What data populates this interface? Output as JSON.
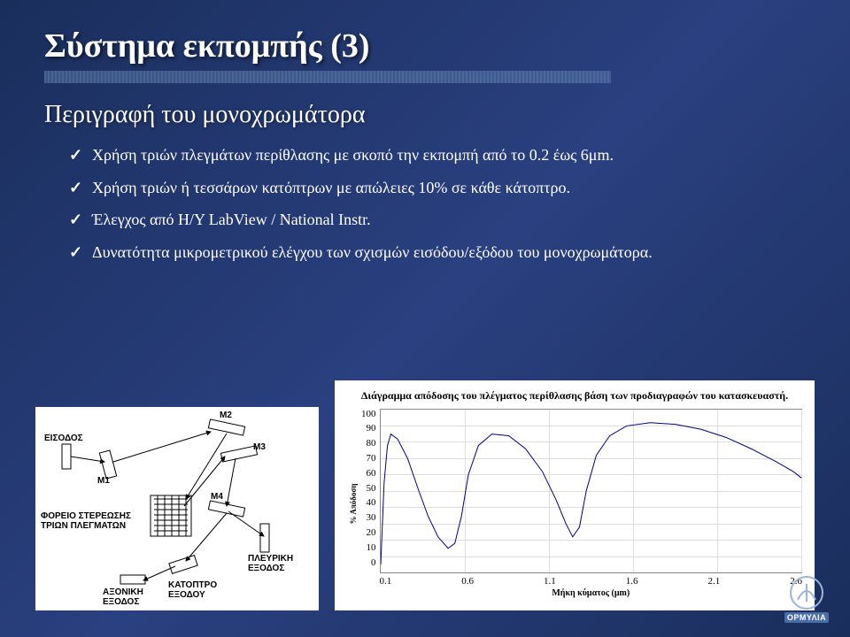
{
  "title": "Σύστημα εκπομπής (3)",
  "subtitle": "Περιγραφή του μονοχρωμάτορα",
  "bullets": [
    "Χρήση τριών πλεγμάτων περίθλασης με σκοπό την εκπομπή από το 0.2 έως 6μm.",
    "Χρήση τριών ή τεσσάρων κατόπτρων με απώλειες 10% σε κάθε κάτοπτρο.",
    "Έλεγχος από Η/Υ LabView / National Instr.",
    "Δυνατότητα μικρομετρικού ελέγχου των σχισμών εισόδου/εξόδου του μονοχρωμάτορα."
  ],
  "schematic": {
    "labels": {
      "eisodos": "ΕΙΣΟΔΟΣ",
      "m1": "M1",
      "m2": "M2",
      "m3": "M3",
      "m4": "M4",
      "foreio": "ΦΟΡΕΙΟ ΣΤΕΡΕΩΣΗΣ\nΤΡΙΩΝ ΠΛΕΓΜΑΤΩΝ",
      "pleyriki": "ΠΛΕΥΡΙΚΗ\nΕΞΟΔΟΣ",
      "axoniki": "ΑΞΟΝΙΚΗ\nΕΞΟΔΟΣ",
      "katoptro": "ΚΑΤΟΠΤΡΟ\nΕΞΟΔΟΥ"
    }
  },
  "chart": {
    "title": "Διάγραμμα απόδοσης του πλέγματος περίθλασης βάση των προδιαγραφών του κατασκευαστή.",
    "ylabel": "% Απόδοση",
    "xlabel": "Μήκη κύματος (μm)",
    "ylim": [
      0,
      100
    ],
    "ytick_step": 10,
    "xticks": [
      "0.1",
      "0.6",
      "1.1",
      "1.6",
      "2.1",
      "2.6"
    ],
    "yticks": [
      "100",
      "90",
      "80",
      "70",
      "60",
      "50",
      "40",
      "30",
      "20",
      "10",
      "0"
    ],
    "line_color": "#000080",
    "grid_color": "#dddddd",
    "background": "#ffffff",
    "series": [
      {
        "x": 0.1,
        "y": 5
      },
      {
        "x": 0.12,
        "y": 55
      },
      {
        "x": 0.14,
        "y": 78
      },
      {
        "x": 0.16,
        "y": 85
      },
      {
        "x": 0.2,
        "y": 82
      },
      {
        "x": 0.26,
        "y": 70
      },
      {
        "x": 0.32,
        "y": 52
      },
      {
        "x": 0.38,
        "y": 35
      },
      {
        "x": 0.44,
        "y": 22
      },
      {
        "x": 0.5,
        "y": 15
      },
      {
        "x": 0.54,
        "y": 18
      },
      {
        "x": 0.58,
        "y": 35
      },
      {
        "x": 0.62,
        "y": 60
      },
      {
        "x": 0.68,
        "y": 78
      },
      {
        "x": 0.76,
        "y": 85
      },
      {
        "x": 0.86,
        "y": 84
      },
      {
        "x": 0.96,
        "y": 76
      },
      {
        "x": 1.06,
        "y": 62
      },
      {
        "x": 1.14,
        "y": 45
      },
      {
        "x": 1.2,
        "y": 30
      },
      {
        "x": 1.24,
        "y": 22
      },
      {
        "x": 1.28,
        "y": 28
      },
      {
        "x": 1.32,
        "y": 50
      },
      {
        "x": 1.38,
        "y": 72
      },
      {
        "x": 1.46,
        "y": 84
      },
      {
        "x": 1.56,
        "y": 90
      },
      {
        "x": 1.7,
        "y": 92
      },
      {
        "x": 1.85,
        "y": 91
      },
      {
        "x": 2.0,
        "y": 88
      },
      {
        "x": 2.15,
        "y": 83
      },
      {
        "x": 2.3,
        "y": 76
      },
      {
        "x": 2.45,
        "y": 68
      },
      {
        "x": 2.55,
        "y": 62
      },
      {
        "x": 2.6,
        "y": 58
      }
    ]
  },
  "logo_text": "ΟΡΜΥΛΙΑ"
}
